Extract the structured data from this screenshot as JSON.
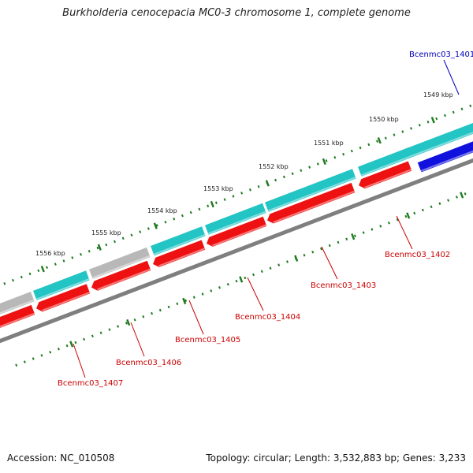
{
  "title": "Burkholderia cenocepacia MC0-3 chromosome 1, complete genome",
  "footer": {
    "accession": "Accession: NC_010508",
    "topology": "Topology: circular; Length: 3,532,883 bp; Genes: 3,233"
  },
  "colors": {
    "backbone": "#7f7f7f",
    "forward_cds": "#ee1111",
    "reverse_cds": "#22c4c4",
    "pseudo": "#b8b8b8",
    "highlight": "#1111dd",
    "tick": "#1e7a1e",
    "label_red": "#cc0000",
    "label_blue": "#0000bb"
  },
  "scale": {
    "ticks": [
      "1549 kbp",
      "1550 kbp",
      "1551 kbp",
      "1552 kbp",
      "1553 kbp",
      "1554 kbp",
      "1555 kbp",
      "1556 kbp"
    ]
  },
  "gene_labels": [
    {
      "text": "Bcenmc03_1401",
      "color": "blue"
    },
    {
      "text": "Bcenmc03_1402",
      "color": "red"
    },
    {
      "text": "Bcenmc03_1403",
      "color": "red"
    },
    {
      "text": "Bcenmc03_1404",
      "color": "red"
    },
    {
      "text": "Bcenmc03_1405",
      "color": "red"
    },
    {
      "text": "Bcenmc03_1406",
      "color": "red"
    },
    {
      "text": "Bcenmc03_1407",
      "color": "red"
    }
  ]
}
